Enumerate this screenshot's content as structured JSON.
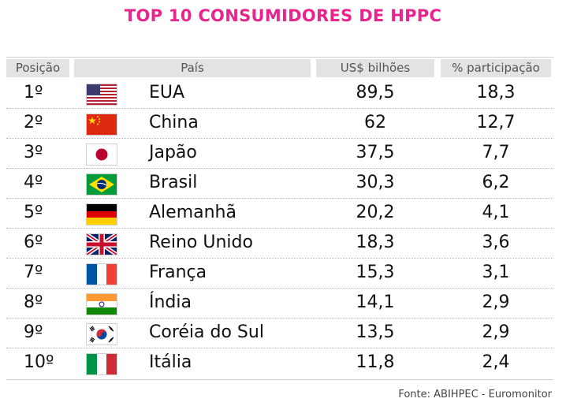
{
  "title": "TOP 10 CONSUMIDORES DE HPPC",
  "colors": {
    "title": "#e8258e",
    "header_bg": "#e3e3e3",
    "header_text": "#555555"
  },
  "columns": {
    "position": "Posição",
    "country": "País",
    "value": "US$ bilhões",
    "share": "% participação"
  },
  "rows": [
    {
      "position": "1º",
      "flag": "usa-flag-icon",
      "country": "EUA",
      "value": "89,5",
      "share": "18,3"
    },
    {
      "position": "2º",
      "flag": "china-flag-icon",
      "country": "China",
      "value": "62",
      "share": "12,7"
    },
    {
      "position": "3º",
      "flag": "japan-flag-icon",
      "country": "Japão",
      "value": "37,5",
      "share": "7,7"
    },
    {
      "position": "4º",
      "flag": "brazil-flag-icon",
      "country": "Brasil",
      "value": "30,3",
      "share": "6,2"
    },
    {
      "position": "5º",
      "flag": "germany-flag-icon",
      "country": "Alemanhã",
      "value": "20,2",
      "share": "4,1"
    },
    {
      "position": "6º",
      "flag": "uk-flag-icon",
      "country": "Reino Unido",
      "value": "18,3",
      "share": "3,6"
    },
    {
      "position": "7º",
      "flag": "france-flag-icon",
      "country": "França",
      "value": "15,3",
      "share": "3,1"
    },
    {
      "position": "8º",
      "flag": "india-flag-icon",
      "country": "Índia",
      "value": "14,1",
      "share": "2,9"
    },
    {
      "position": "9º",
      "flag": "south-korea-flag-icon",
      "country": "Coréia do Sul",
      "value": "13,5",
      "share": "2,9"
    },
    {
      "position": "10º",
      "flag": "italy-flag-icon",
      "country": "Itália",
      "value": "11,8",
      "share": "2,4"
    }
  ],
  "source": "Fonte: ABIHPEC - Euromonitor"
}
